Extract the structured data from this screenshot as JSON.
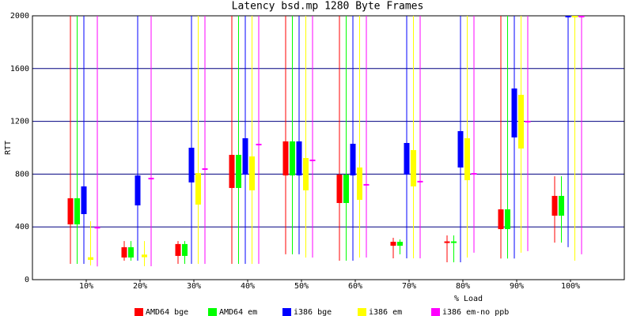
{
  "chart_data": {
    "type": "box",
    "title": "Latency bsd.mp 1280 Byte Frames",
    "y_label": "RTT",
    "x_label": "% Load",
    "categories": [
      "10%",
      "20%",
      "30%",
      "40%",
      "50%",
      "60%",
      "70%",
      "80%",
      "90%",
      "100%"
    ],
    "ylim": [
      0,
      2000
    ],
    "yticks": [
      0,
      400,
      800,
      1200,
      1600,
      2000
    ],
    "grid": true,
    "legend": "bottom",
    "series": [
      {
        "name": "AMD64 bge",
        "color": "#ff0000",
        "low": [
          120,
          144,
          120,
          120,
          192,
          144,
          162,
          132,
          160,
          281
        ],
        "q1": [
          419,
          168,
          180,
          695,
          790,
          581,
          257,
          280,
          383,
          485
        ],
        "q3": [
          617,
          246,
          270,
          946,
          1048,
          796,
          287,
          290,
          533,
          635
        ],
        "high": [
          2000,
          293,
          293,
          2000,
          2000,
          2000,
          317,
          335,
          2000,
          784
        ]
      },
      {
        "name": "AMD64 em",
        "color": "#00ff00",
        "low": [
          120,
          144,
          120,
          120,
          192,
          144,
          192,
          132,
          160,
          281
        ],
        "q1": [
          419,
          168,
          180,
          695,
          790,
          581,
          257,
          280,
          383,
          485
        ],
        "q3": [
          617,
          246,
          270,
          946,
          1048,
          796,
          287,
          290,
          533,
          635
        ],
        "high": [
          2000,
          293,
          293,
          2000,
          2000,
          2000,
          305,
          335,
          2000,
          784
        ]
      },
      {
        "name": "i386 bge",
        "color": "#0000ff",
        "low": [
          120,
          144,
          120,
          120,
          192,
          144,
          162,
          132,
          160,
          246
        ],
        "q1": [
          497,
          563,
          737,
          796,
          790,
          790,
          796,
          850,
          1078,
          1990
        ],
        "q3": [
          707,
          790,
          1000,
          1072,
          1048,
          1030,
          1036,
          1126,
          1449,
          2000
        ],
        "high": [
          2000,
          2000,
          2000,
          2000,
          2000,
          2000,
          2000,
          2000,
          2000,
          2000
        ]
      },
      {
        "name": "i386 em",
        "color": "#ffff00",
        "low": [
          108,
          102,
          120,
          120,
          168,
          168,
          162,
          168,
          204,
          144
        ],
        "q1": [
          150,
          170,
          569,
          677,
          677,
          605,
          707,
          754,
          994,
          1990
        ],
        "q3": [
          170,
          190,
          808,
          934,
          922,
          850,
          982,
          1072,
          1401,
          2000
        ],
        "high": [
          443,
          293,
          2000,
          2000,
          2000,
          2000,
          2000,
          2000,
          2000,
          2000
        ]
      },
      {
        "name": "i386 em-no_ppb",
        "color": "#ff00ff",
        "low": [
          100,
          102,
          120,
          120,
          168,
          168,
          162,
          204,
          216,
          192
        ],
        "q1": [
          390,
          760,
          832,
          1018,
          898,
          713,
          737,
          796,
          1192,
          1990
        ],
        "q3": [
          400,
          772,
          844,
          1030,
          910,
          725,
          749,
          808,
          1204,
          2000
        ],
        "high": [
          2000,
          2000,
          2000,
          2000,
          2000,
          2000,
          2000,
          2000,
          2000,
          2000
        ]
      }
    ]
  }
}
